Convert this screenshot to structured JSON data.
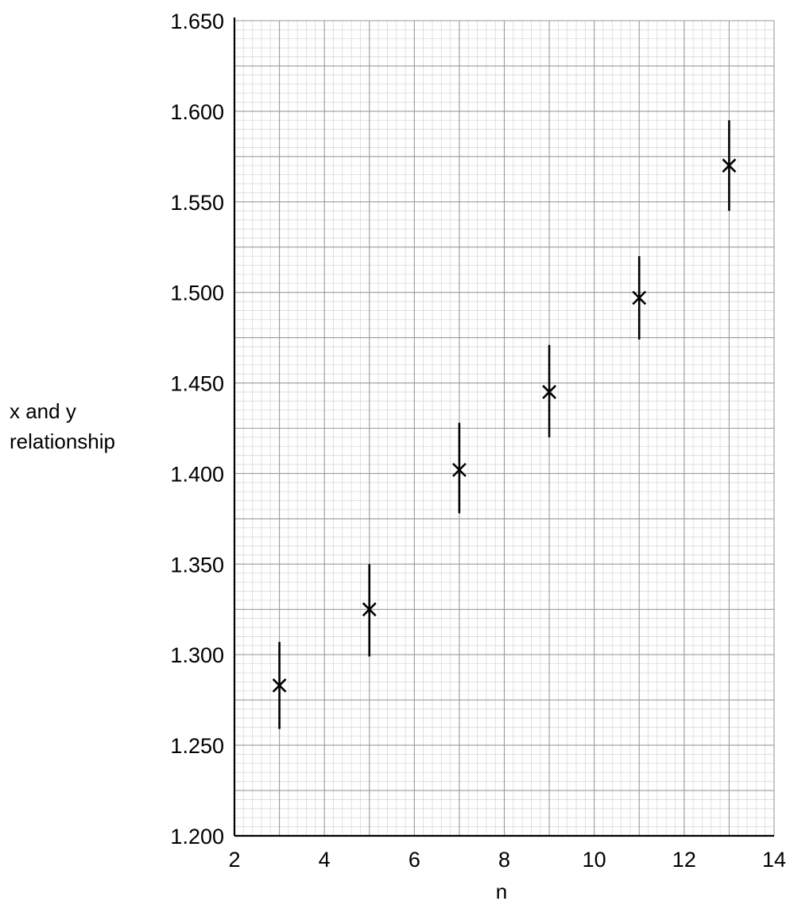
{
  "chart_data": {
    "type": "scatter",
    "title": "",
    "xlabel": "n",
    "ylabel_lines": [
      "x and y",
      "relationship"
    ],
    "xlim": [
      2,
      14
    ],
    "ylim": [
      1.2,
      1.65
    ],
    "x_ticks": [
      2,
      4,
      6,
      8,
      10,
      12,
      14
    ],
    "x_tick_labels": [
      "2",
      "4",
      "6",
      "8",
      "10",
      "12",
      "14"
    ],
    "y_ticks": [
      1.2,
      1.25,
      1.3,
      1.35,
      1.4,
      1.45,
      1.5,
      1.55,
      1.6,
      1.65
    ],
    "y_tick_labels": [
      "1.200",
      "1.250",
      "1.300",
      "1.350",
      "1.400",
      "1.450",
      "1.500",
      "1.550",
      "1.600",
      "1.650"
    ],
    "grid": "graph paper (major every 1 unit in n and 0.025 in y, minor subdivisions)",
    "marker": "x",
    "points": [
      {
        "x": 3,
        "y": 1.283,
        "err_low": 1.259,
        "err_high": 1.307
      },
      {
        "x": 5,
        "y": 1.325,
        "err_low": 1.299,
        "err_high": 1.35
      },
      {
        "x": 7,
        "y": 1.402,
        "err_low": 1.378,
        "err_high": 1.428
      },
      {
        "x": 9,
        "y": 1.445,
        "err_low": 1.42,
        "err_high": 1.471
      },
      {
        "x": 11,
        "y": 1.497,
        "err_low": 1.474,
        "err_high": 1.52
      },
      {
        "x": 13,
        "y": 1.57,
        "err_low": 1.545,
        "err_high": 1.595
      }
    ]
  }
}
